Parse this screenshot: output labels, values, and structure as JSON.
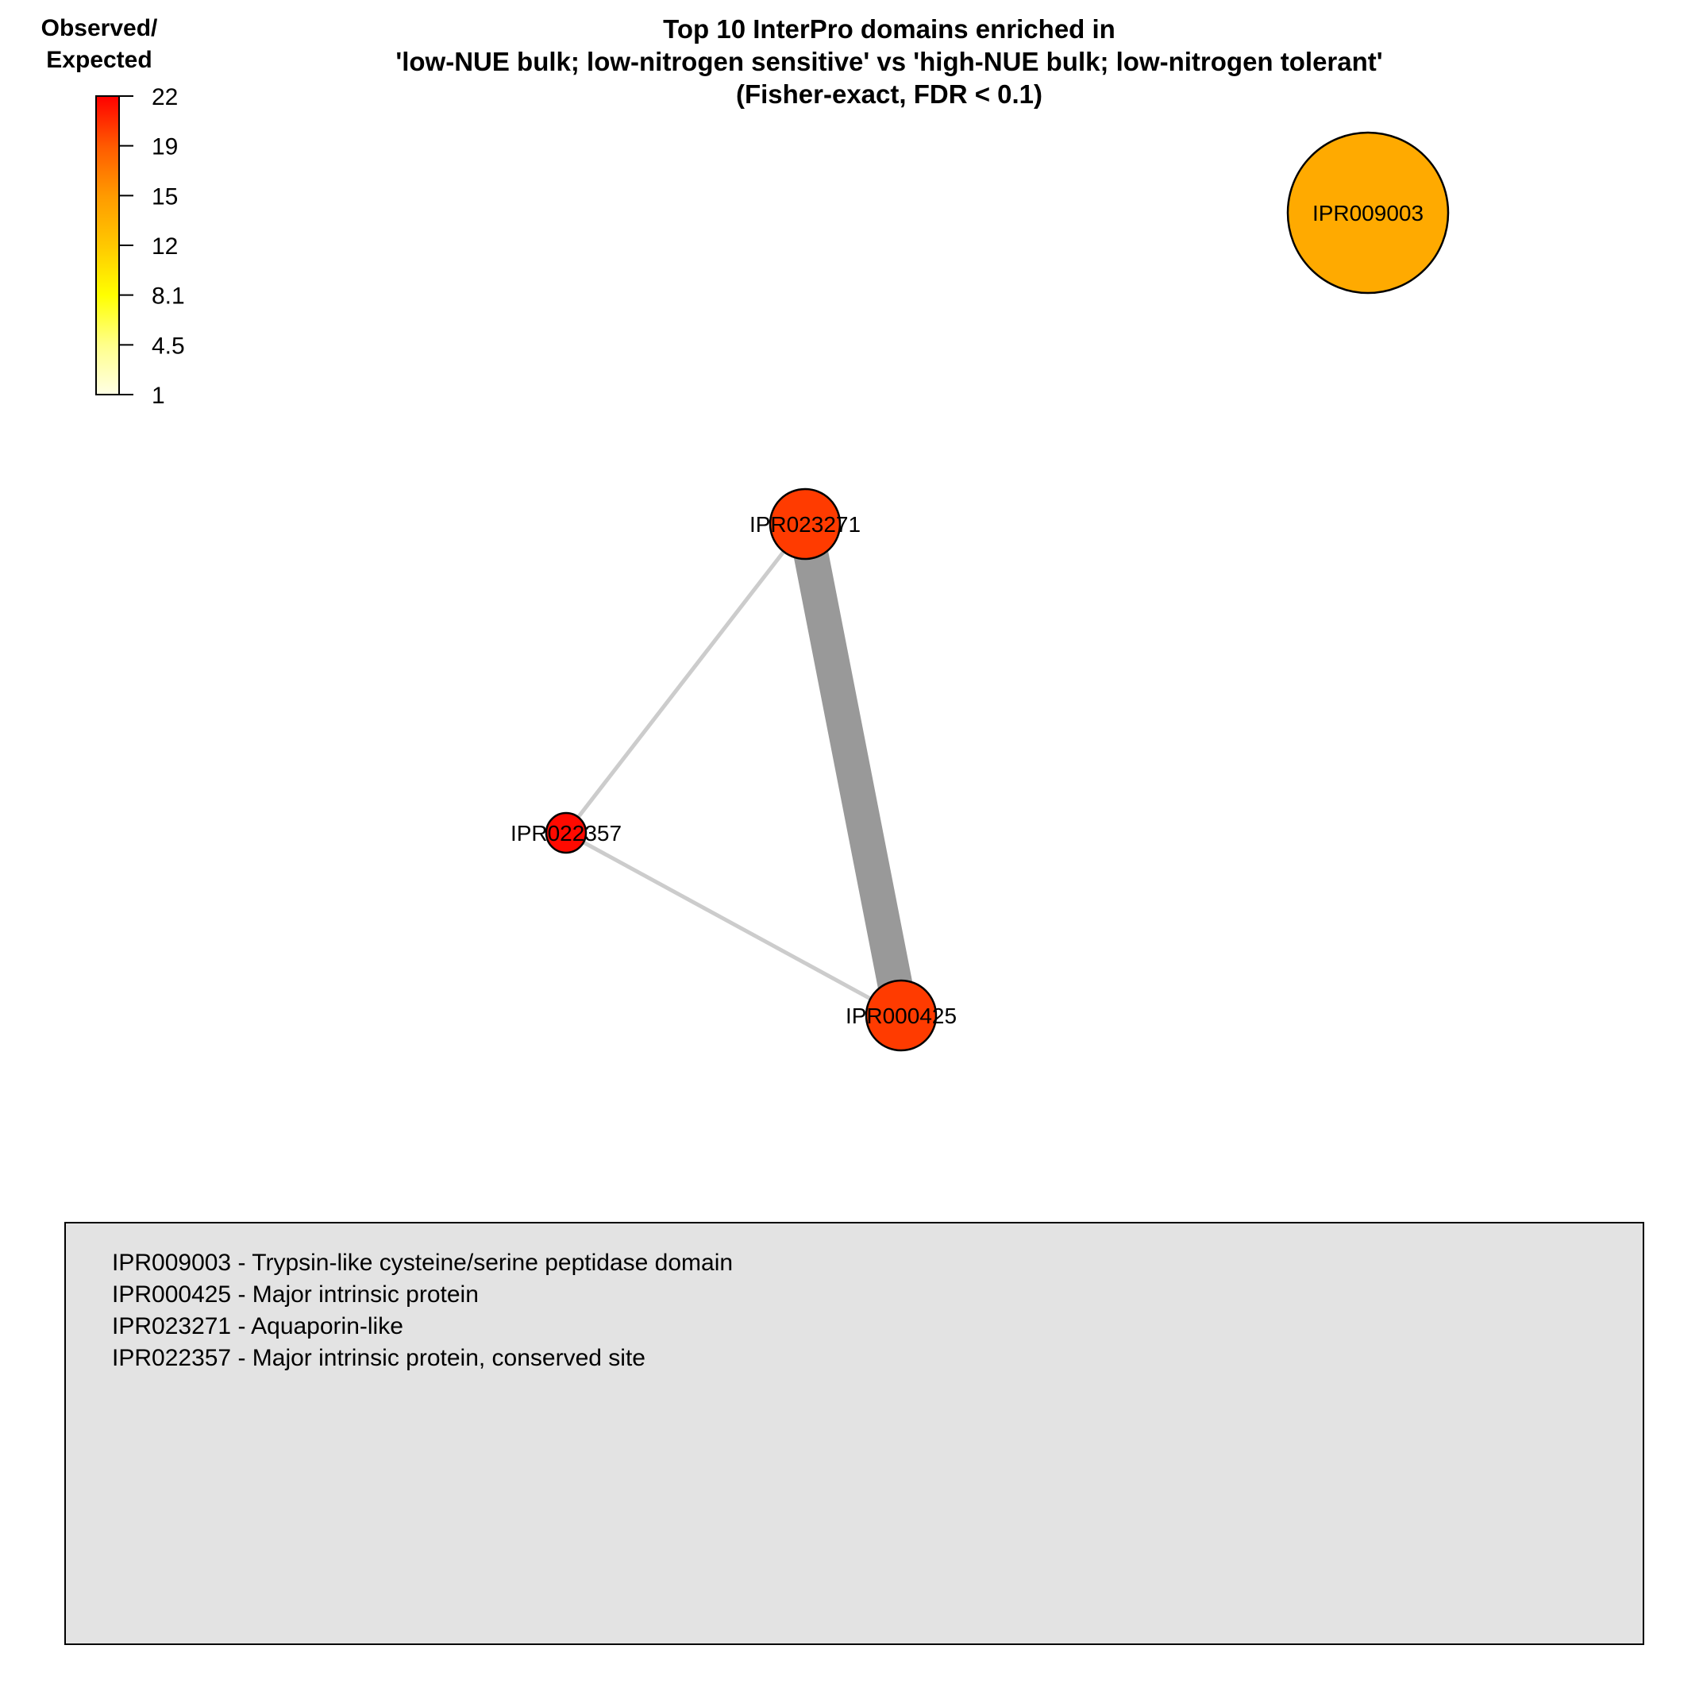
{
  "title": {
    "line1": "Top 10 InterPro domains enriched in",
    "line2": "'low-NUE bulk; low-nitrogen sensitive' vs 'high-NUE bulk; low-nitrogen tolerant'",
    "line3": "(Fisher-exact, FDR < 0.1)"
  },
  "color_scale": {
    "title_line1": "Observed/",
    "title_line2": "Expected",
    "tick_labels": [
      "22",
      "19",
      "15",
      "12",
      "8.1",
      "4.5",
      "1"
    ],
    "min": 1,
    "max": 22,
    "gradient": [
      "#ffffe5",
      "#ffff8a",
      "#ffff00",
      "#ffc800",
      "#ff9a00",
      "#ff5a00",
      "#ff0000"
    ]
  },
  "nodes": [
    {
      "id": "IPR009003",
      "label": "IPR009003",
      "color": "#ffaa00"
    },
    {
      "id": "IPR023271",
      "label": "IPR023271",
      "color": "#ff3b00"
    },
    {
      "id": "IPR022357",
      "label": "IPR022357",
      "color": "#ff0a00"
    },
    {
      "id": "IPR000425",
      "label": "IPR000425",
      "color": "#ff3b00"
    }
  ],
  "edges": [
    {
      "source": "IPR023271",
      "target": "IPR000425",
      "color": "#999999",
      "weight": "strong"
    },
    {
      "source": "IPR023271",
      "target": "IPR022357",
      "color": "#cccccc",
      "weight": "weak"
    },
    {
      "source": "IPR022357",
      "target": "IPR000425",
      "color": "#cccccc",
      "weight": "weak"
    }
  ],
  "legend": [
    "IPR009003 - Trypsin-like cysteine/serine peptidase domain",
    "IPR000425 - Major intrinsic protein",
    "IPR023271 - Aquaporin-like",
    "IPR022357 - Major intrinsic protein, conserved site"
  ]
}
